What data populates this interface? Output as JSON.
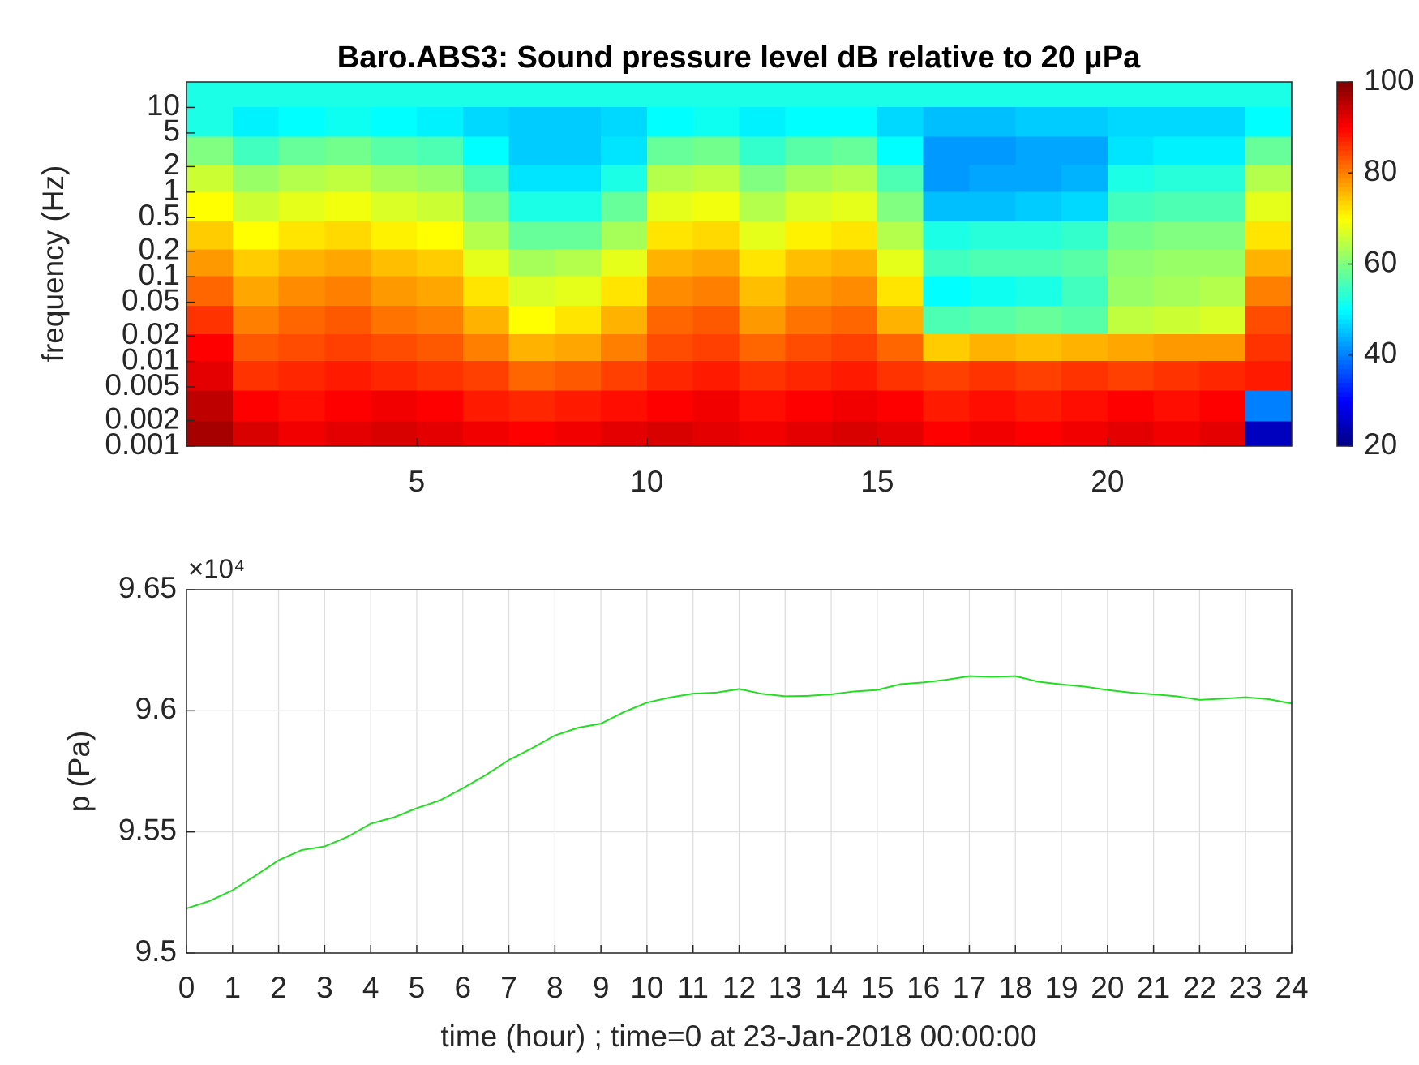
{
  "chart_data": [
    {
      "type": "heatmap",
      "title": "Baro.ABS3: Sound pressure level dB relative to 20 μPa",
      "ylabel": "frequency (Hz)",
      "yscale": "log",
      "colormap": "jet",
      "xlim": [
        0,
        24
      ],
      "xticks": [
        5,
        10,
        15,
        20
      ],
      "ylim": [
        0.001,
        20
      ],
      "yticks": [
        0.001,
        0.002,
        0.005,
        0.01,
        0.02,
        0.05,
        0.1,
        0.2,
        0.5,
        1,
        2,
        5,
        10
      ],
      "clim": [
        20,
        100
      ],
      "cticks": [
        20,
        40,
        60,
        80,
        100
      ],
      "x": [
        0.5,
        1.5,
        2.5,
        3.5,
        4.5,
        5.5,
        6.5,
        7.5,
        8.5,
        9.5,
        10.5,
        11.5,
        12.5,
        13.5,
        14.5,
        15.5,
        16.5,
        17.5,
        18.5,
        19.5,
        20.5,
        21.5,
        22.5,
        23.5
      ],
      "y": [
        0.0013,
        0.003,
        0.007,
        0.015,
        0.03,
        0.07,
        0.15,
        0.3,
        0.7,
        1.5,
        3,
        7,
        15
      ],
      "values": [
        [
          97,
          93,
          91,
          92,
          93,
          92,
          91,
          90,
          91,
          92,
          93,
          92,
          91,
          92,
          93,
          92,
          90,
          91,
          90,
          91,
          92,
          91,
          92,
          25
        ],
        [
          95,
          90,
          89,
          90,
          91,
          90,
          88,
          87,
          88,
          89,
          90,
          91,
          89,
          90,
          91,
          90,
          88,
          89,
          88,
          89,
          90,
          89,
          90,
          40
        ],
        [
          92,
          86,
          87,
          88,
          87,
          86,
          85,
          82,
          83,
          85,
          87,
          88,
          86,
          87,
          88,
          86,
          85,
          86,
          85,
          86,
          85,
          86,
          87,
          88
        ],
        [
          90,
          83,
          84,
          85,
          84,
          83,
          80,
          76,
          77,
          80,
          84,
          85,
          82,
          84,
          85,
          82,
          74,
          76,
          75,
          76,
          77,
          78,
          78,
          86
        ],
        [
          86,
          80,
          82,
          83,
          81,
          80,
          76,
          70,
          72,
          76,
          82,
          83,
          78,
          81,
          82,
          76,
          56,
          57,
          58,
          57,
          65,
          66,
          67,
          84
        ],
        [
          82,
          77,
          79,
          80,
          78,
          77,
          72,
          67,
          68,
          72,
          79,
          80,
          75,
          78,
          79,
          72,
          50,
          51,
          52,
          55,
          62,
          63,
          64,
          80
        ],
        [
          78,
          74,
          76,
          77,
          75,
          74,
          68,
          63,
          64,
          68,
          76,
          77,
          72,
          75,
          76,
          68,
          55,
          56,
          56,
          57,
          61,
          62,
          62,
          76
        ],
        [
          74,
          70,
          72,
          73,
          71,
          70,
          64,
          58,
          58,
          63,
          72,
          73,
          68,
          71,
          72,
          64,
          52,
          53,
          53,
          54,
          59,
          60,
          60,
          72
        ],
        [
          70,
          66,
          68,
          69,
          67,
          66,
          60,
          52,
          52,
          58,
          68,
          69,
          64,
          67,
          68,
          60,
          45,
          45,
          46,
          47,
          55,
          56,
          56,
          68
        ],
        [
          66,
          62,
          64,
          65,
          63,
          62,
          56,
          48,
          48,
          52,
          64,
          65,
          60,
          63,
          64,
          56,
          42,
          43,
          43,
          44,
          52,
          53,
          53,
          64
        ],
        [
          60,
          55,
          58,
          59,
          57,
          56,
          50,
          46,
          46,
          48,
          58,
          59,
          54,
          57,
          58,
          50,
          42,
          42,
          43,
          43,
          48,
          49,
          49,
          58
        ],
        [
          52,
          49,
          50,
          51,
          50,
          49,
          47,
          46,
          46,
          47,
          50,
          51,
          49,
          50,
          50,
          47,
          45,
          45,
          46,
          46,
          47,
          47,
          47,
          50
        ],
        [
          52,
          52,
          52,
          52,
          52,
          52,
          52,
          52,
          52,
          52,
          52,
          52,
          52,
          52,
          52,
          52,
          52,
          52,
          52,
          52,
          52,
          52,
          52,
          52
        ]
      ]
    },
    {
      "type": "line",
      "xlabel": "time (hour) ; time=0 at 23-Jan-2018 00:00:00",
      "ylabel": "p (Pa)",
      "y_exponent_label": "×10⁴",
      "color": "#22dd22",
      "grid": true,
      "xlim": [
        0,
        24
      ],
      "xticks": [
        0,
        1,
        2,
        3,
        4,
        5,
        6,
        7,
        8,
        9,
        10,
        11,
        12,
        13,
        14,
        15,
        16,
        17,
        18,
        19,
        20,
        21,
        22,
        23,
        24
      ],
      "ylim": [
        95000,
        96500
      ],
      "yticks": [
        {
          "value": 95000,
          "label": "9.5"
        },
        {
          "value": 95500,
          "label": "9.55"
        },
        {
          "value": 96000,
          "label": "9.6"
        },
        {
          "value": 96500,
          "label": "9.65"
        }
      ],
      "x": [
        0,
        0.5,
        1,
        1.5,
        2,
        2.5,
        3,
        3.5,
        4,
        4.5,
        5,
        5.5,
        6,
        6.5,
        7,
        7.5,
        8,
        8.5,
        9,
        9.5,
        10,
        10.5,
        11,
        11.5,
        12,
        12.5,
        13,
        13.5,
        14,
        14.5,
        15,
        15.5,
        16,
        16.5,
        17,
        17.5,
        18,
        18.5,
        19,
        19.5,
        20,
        20.5,
        21,
        21.5,
        22,
        22.5,
        23,
        23.5,
        24
      ],
      "values": [
        95184,
        95215,
        95259,
        95320,
        95383,
        95425,
        95440,
        95480,
        95534,
        95560,
        95598,
        95630,
        95680,
        95735,
        95797,
        95845,
        95898,
        95930,
        95947,
        95995,
        96034,
        96055,
        96071,
        96075,
        96090,
        96070,
        96060,
        96062,
        96068,
        96080,
        96086,
        96110,
        96117,
        96128,
        96143,
        96140,
        96143,
        96120,
        96109,
        96100,
        96086,
        96075,
        96068,
        96060,
        96045,
        96050,
        96056,
        96048,
        96030
      ]
    }
  ]
}
